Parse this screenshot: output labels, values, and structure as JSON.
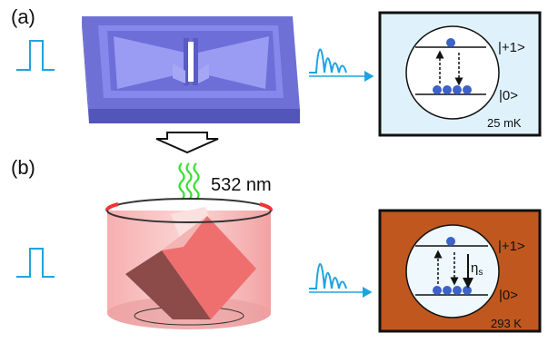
{
  "panel_a": {
    "label": "(a)",
    "state_upper": "|+1>",
    "state_lower": "|0>",
    "temperature": "25 mK",
    "box_color": "#dff2fb"
  },
  "transfer": {
    "wavelength": "532 nm"
  },
  "panel_b": {
    "label": "(b)",
    "state_upper": "|+1>",
    "state_lower": "|0>",
    "rate_symbol": "η",
    "rate_subscript": "s",
    "temperature": "293 K",
    "box_color": "#c0571e"
  },
  "colors": {
    "pulse": "#1fa3e0",
    "atom": "#3d62c8",
    "resonator": "#7d7ee8",
    "crystal": "#f07a7a",
    "laser": "#39e031"
  },
  "icons": [
    "input-pulse-icon",
    "output-pulse-icon",
    "down-arrow-icon",
    "laser-wave-icon"
  ]
}
